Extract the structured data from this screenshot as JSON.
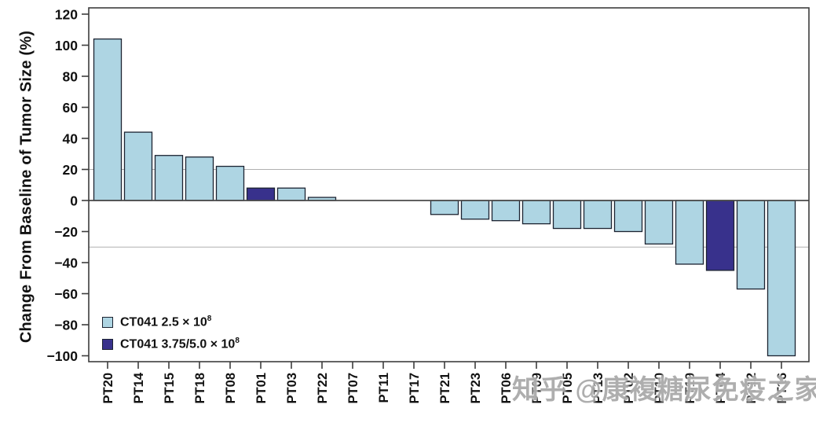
{
  "figure": {
    "ylabel": "Change From Baseline of Tumor Size (%)",
    "watermark_text": "知乎 @康複糖尿免疫之家"
  },
  "legend": {
    "items": [
      {
        "label_base": "CT041 2.5 × 10",
        "label_exp": "8",
        "color": "#aed5e3"
      },
      {
        "label_base": "CT041 3.75/5.0 × 10",
        "label_exp": "8",
        "color": "#38318c"
      }
    ]
  },
  "chart_data": {
    "type": "bar",
    "title": "",
    "xlabel": "",
    "ylabel": "Change From Baseline of Tumor Size (%)",
    "categories": [
      "PT20",
      "PT14",
      "PT15",
      "PT18",
      "PT08",
      "PT01",
      "PT03",
      "PT22",
      "PT07",
      "PT11",
      "PT17",
      "PT21",
      "PT23",
      "PT06",
      "PT09",
      "PT05",
      "PT13",
      "PT02",
      "PT10",
      "PT19",
      "PT04",
      "PT12",
      "PT16"
    ],
    "values": [
      104,
      44,
      29,
      28,
      22,
      8,
      8,
      2,
      0,
      0,
      0,
      -9,
      -12,
      -13,
      -15,
      -18,
      -18,
      -20,
      -28,
      -41,
      -45,
      -57,
      -100
    ],
    "highlight_indices": [
      5,
      20
    ],
    "colors": {
      "bar_default": "#aed5e3",
      "bar_highlight": "#38318c",
      "bar_border": "#1c2331",
      "axis": "#3d3d3d",
      "tick_label": "#111111",
      "reference_line": "#b0b0b0",
      "zero_line": "#4a4a4a"
    },
    "ylim": [
      -103,
      124
    ],
    "yticks": [
      120,
      100,
      80,
      60,
      40,
      20,
      0,
      -20,
      -40,
      -60,
      -80,
      -100
    ],
    "reference_lines": [
      20,
      -30
    ],
    "grid": "reference-lines-only",
    "legend_position": "bottom-left",
    "legend": [
      "CT041 2.5 × 10^8",
      "CT041 3.75/5.0 × 10^8"
    ]
  }
}
